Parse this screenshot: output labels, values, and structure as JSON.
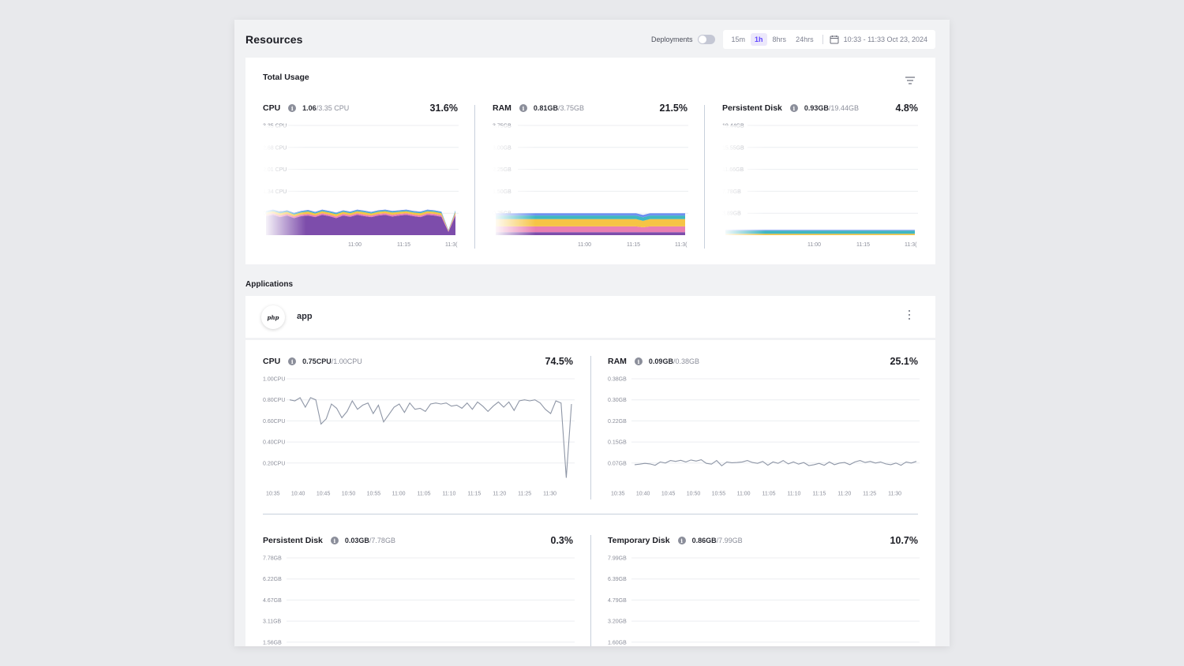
{
  "header": {
    "title": "Resources",
    "deployments_label": "Deployments",
    "range_options": [
      "15m",
      "1h",
      "8hrs",
      "24hrs"
    ],
    "active_range": "1h",
    "date_range": "10:33 - 11:33 Oct 23, 2024"
  },
  "total_usage": {
    "title": "Total Usage",
    "metrics": [
      {
        "name": "CPU",
        "used": "1.06",
        "slash": " / ",
        "total": "3.35 CPU",
        "percent": "31.6%"
      },
      {
        "name": "RAM",
        "used": "0.81GB",
        "slash": " / ",
        "total": "3.75GB",
        "percent": "21.5%"
      },
      {
        "name": "Persistent Disk",
        "used": "0.93GB",
        "slash": " / ",
        "total": "19.44GB",
        "percent": "4.8%"
      }
    ]
  },
  "applications": {
    "section_label": "Applications",
    "app": {
      "logo_text": "php",
      "name": "app",
      "metrics": [
        {
          "name": "CPU",
          "used": "0.75CPU",
          "slash": " / ",
          "total": "1.00CPU",
          "percent": "74.5%"
        },
        {
          "name": "RAM",
          "used": "0.09GB",
          "slash": " / ",
          "total": "0.38GB",
          "percent": "25.1%"
        },
        {
          "name": "Persistent Disk",
          "used": "0.03GB",
          "slash": " / ",
          "total": "7.78GB",
          "percent": "0.3%"
        },
        {
          "name": "Temporary Disk",
          "used": "0.86GB",
          "slash": " / ",
          "total": "7.99GB",
          "percent": "10.7%"
        }
      ]
    }
  },
  "colors": {
    "accent": "#6046ff",
    "purple": "#7d4dab",
    "pink": "#e97fb3",
    "yellow": "#f6c445",
    "teal": "#3fb7c1",
    "blue": "#6d8ff0",
    "line": "#8e96a6"
  },
  "chart_data": [
    {
      "id": "total-cpu",
      "type": "area",
      "stacked": true,
      "yticks": [
        "3.35 CPU",
        "2.68 CPU",
        "2.01 CPU",
        "1.34 CPU",
        "0.67 CPU"
      ],
      "ylim": [
        0,
        3.35
      ],
      "xticks": [
        "11:00",
        "11:15",
        "11:3("
      ],
      "series": [
        {
          "color": "#7d4dab",
          "values": [
            0.58,
            0.62,
            0.55,
            0.6,
            0.52,
            0.58,
            0.6,
            0.55,
            0.62,
            0.58,
            0.52,
            0.6,
            0.56,
            0.62,
            0.58,
            0.55,
            0.6,
            0.62,
            0.57,
            0.6,
            0.62,
            0.58,
            0.55,
            0.62,
            0.6,
            0.56,
            0.1,
            0.6
          ]
        },
        {
          "color": "#e97fb3",
          "values": [
            0.05,
            0.05,
            0.05,
            0.05,
            0.05,
            0.05,
            0.05,
            0.05,
            0.05,
            0.05,
            0.05,
            0.05,
            0.05,
            0.05,
            0.05,
            0.05,
            0.05,
            0.05,
            0.05,
            0.05,
            0.05,
            0.05,
            0.05,
            0.05,
            0.05,
            0.05,
            0.02,
            0.05
          ]
        },
        {
          "color": "#f6c445",
          "values": [
            0.06,
            0.06,
            0.07,
            0.06,
            0.06,
            0.06,
            0.07,
            0.06,
            0.06,
            0.06,
            0.07,
            0.06,
            0.06,
            0.06,
            0.07,
            0.06,
            0.06,
            0.06,
            0.07,
            0.06,
            0.06,
            0.06,
            0.07,
            0.06,
            0.06,
            0.06,
            0.02,
            0.06
          ]
        },
        {
          "color": "#3fb7c1",
          "values": [
            0.03,
            0.03,
            0.03,
            0.03,
            0.03,
            0.03,
            0.03,
            0.03,
            0.03,
            0.03,
            0.03,
            0.03,
            0.03,
            0.03,
            0.03,
            0.03,
            0.03,
            0.03,
            0.03,
            0.03,
            0.03,
            0.03,
            0.03,
            0.03,
            0.03,
            0.03,
            0.01,
            0.03
          ]
        },
        {
          "color": "#6d8ff0",
          "values": [
            0.02,
            0.02,
            0.02,
            0.02,
            0.02,
            0.02,
            0.02,
            0.02,
            0.02,
            0.02,
            0.02,
            0.02,
            0.02,
            0.02,
            0.02,
            0.02,
            0.02,
            0.02,
            0.02,
            0.02,
            0.02,
            0.02,
            0.02,
            0.02,
            0.02,
            0.02,
            0.01,
            0.02
          ]
        }
      ]
    },
    {
      "id": "total-ram",
      "type": "area",
      "stacked": true,
      "yticks": [
        "3.75GB",
        "3.00GB",
        "2.25GB",
        "1.50GB",
        "0.75GB"
      ],
      "ylim": [
        0,
        3.75
      ],
      "xticks": [
        "11:00",
        "11:15",
        "11:3("
      ],
      "series": [
        {
          "color": "#7d4dab",
          "values": [
            0.1,
            0.1,
            0.1,
            0.1,
            0.1,
            0.1,
            0.1,
            0.1,
            0.1,
            0.1,
            0.1,
            0.1,
            0.1,
            0.1,
            0.1,
            0.1,
            0.1,
            0.1,
            0.1,
            0.1,
            0.1,
            0.1,
            0.1,
            0.1,
            0.1,
            0.1,
            0.1,
            0.1
          ]
        },
        {
          "color": "#e97fb3",
          "values": [
            0.2,
            0.2,
            0.2,
            0.2,
            0.2,
            0.2,
            0.2,
            0.2,
            0.2,
            0.2,
            0.2,
            0.2,
            0.2,
            0.2,
            0.2,
            0.2,
            0.2,
            0.2,
            0.2,
            0.2,
            0.2,
            0.17,
            0.2,
            0.2,
            0.2,
            0.2,
            0.2,
            0.2
          ]
        },
        {
          "color": "#f6c445",
          "values": [
            0.25,
            0.25,
            0.25,
            0.25,
            0.25,
            0.25,
            0.25,
            0.25,
            0.25,
            0.25,
            0.25,
            0.25,
            0.25,
            0.25,
            0.25,
            0.25,
            0.25,
            0.25,
            0.25,
            0.25,
            0.25,
            0.22,
            0.25,
            0.25,
            0.25,
            0.25,
            0.25,
            0.25
          ]
        },
        {
          "color": "#3fb7c1",
          "values": [
            0.12,
            0.12,
            0.12,
            0.12,
            0.12,
            0.12,
            0.12,
            0.12,
            0.12,
            0.12,
            0.12,
            0.12,
            0.12,
            0.12,
            0.12,
            0.12,
            0.12,
            0.12,
            0.12,
            0.12,
            0.12,
            0.12,
            0.12,
            0.12,
            0.12,
            0.12,
            0.12,
            0.12
          ]
        },
        {
          "color": "#6d8ff0",
          "values": [
            0.08,
            0.08,
            0.08,
            0.08,
            0.08,
            0.08,
            0.08,
            0.08,
            0.08,
            0.08,
            0.08,
            0.08,
            0.08,
            0.08,
            0.08,
            0.08,
            0.08,
            0.08,
            0.08,
            0.08,
            0.08,
            0.08,
            0.08,
            0.08,
            0.08,
            0.08,
            0.08,
            0.08
          ]
        }
      ]
    },
    {
      "id": "total-disk",
      "type": "area",
      "stacked": true,
      "yticks": [
        "19.44GB",
        "15.55GB",
        "11.66GB",
        "7.78GB",
        "3.89GB"
      ],
      "ylim": [
        0,
        19.44
      ],
      "xticks": [
        "11:00",
        "11:15",
        "11:3("
      ],
      "series": [
        {
          "color": "#f6c445",
          "values": [
            0.25,
            0.25,
            0.25,
            0.25,
            0.25,
            0.25,
            0.25,
            0.25,
            0.25,
            0.25,
            0.25,
            0.25,
            0.25,
            0.25,
            0.25,
            0.25,
            0.25,
            0.25,
            0.25,
            0.25,
            0.25,
            0.25,
            0.25,
            0.25,
            0.25,
            0.25,
            0.25,
            0.25
          ]
        },
        {
          "color": "#3fb7c1",
          "values": [
            0.55,
            0.55,
            0.55,
            0.55,
            0.55,
            0.55,
            0.55,
            0.55,
            0.55,
            0.55,
            0.55,
            0.55,
            0.55,
            0.55,
            0.55,
            0.55,
            0.55,
            0.55,
            0.55,
            0.55,
            0.55,
            0.55,
            0.55,
            0.55,
            0.55,
            0.55,
            0.55,
            0.55
          ]
        },
        {
          "color": "#6d8ff0",
          "values": [
            0.13,
            0.13,
            0.13,
            0.13,
            0.13,
            0.13,
            0.13,
            0.13,
            0.13,
            0.13,
            0.13,
            0.13,
            0.13,
            0.13,
            0.13,
            0.13,
            0.13,
            0.13,
            0.13,
            0.13,
            0.13,
            0.13,
            0.13,
            0.13,
            0.13,
            0.13,
            0.13,
            0.13
          ]
        }
      ]
    },
    {
      "id": "app-cpu",
      "type": "line",
      "yticks": [
        "1.00CPU",
        "0.80CPU",
        "0.60CPU",
        "0.40CPU",
        "0.20CPU"
      ],
      "ylim": [
        0,
        1.0
      ],
      "xticks": [
        "10:35",
        "10:40",
        "10:45",
        "10:50",
        "10:55",
        "11:00",
        "11:05",
        "11:10",
        "11:15",
        "11:20",
        "11:25",
        "11:30"
      ],
      "series": [
        {
          "color": "#8e96a6",
          "values": [
            0.8,
            0.79,
            0.82,
            0.73,
            0.82,
            0.8,
            0.57,
            0.62,
            0.76,
            0.72,
            0.63,
            0.69,
            0.79,
            0.71,
            0.75,
            0.77,
            0.67,
            0.75,
            0.59,
            0.66,
            0.73,
            0.76,
            0.68,
            0.77,
            0.71,
            0.72,
            0.69,
            0.76,
            0.77,
            0.76,
            0.77,
            0.74,
            0.75,
            0.72,
            0.77,
            0.71,
            0.78,
            0.74,
            0.69,
            0.74,
            0.78,
            0.73,
            0.78,
            0.7,
            0.79,
            0.8,
            0.79,
            0.8,
            0.77,
            0.71,
            0.67,
            0.79,
            0.77,
            0.06,
            0.76
          ]
        }
      ]
    },
    {
      "id": "app-ram",
      "type": "line",
      "yticks": [
        "0.38GB",
        "0.30GB",
        "0.22GB",
        "0.15GB",
        "0.07GB"
      ],
      "ylim": [
        0,
        0.38
      ],
      "xticks": [
        "10:35",
        "10:40",
        "10:45",
        "10:50",
        "10:55",
        "11:00",
        "11:05",
        "11:10",
        "11:15",
        "11:20",
        "11:25",
        "11:30"
      ],
      "series": [
        {
          "color": "#8e96a6",
          "values": [
            0.07,
            0.072,
            0.075,
            0.073,
            0.068,
            0.08,
            0.076,
            0.085,
            0.082,
            0.086,
            0.08,
            0.087,
            0.083,
            0.088,
            0.075,
            0.072,
            0.085,
            0.066,
            0.08,
            0.077,
            0.078,
            0.08,
            0.085,
            0.078,
            0.075,
            0.082,
            0.068,
            0.08,
            0.075,
            0.085,
            0.073,
            0.08,
            0.072,
            0.078,
            0.067,
            0.07,
            0.075,
            0.068,
            0.08,
            0.07,
            0.076,
            0.078,
            0.07,
            0.08,
            0.085,
            0.078,
            0.082,
            0.076,
            0.08,
            0.073,
            0.07,
            0.076,
            0.068,
            0.08,
            0.076,
            0.082
          ]
        }
      ]
    },
    {
      "id": "app-pdisk",
      "type": "line",
      "yticks": [
        "7.78GB",
        "6.22GB",
        "4.67GB",
        "3.11GB",
        "1.56GB"
      ],
      "ylim": [
        0,
        7.78
      ],
      "xticks": [],
      "series": []
    },
    {
      "id": "app-tdisk",
      "type": "line",
      "yticks": [
        "7.99GB",
        "6.39GB",
        "4.79GB",
        "3.20GB",
        "1.60GB"
      ],
      "ylim": [
        0,
        7.99
      ],
      "xticks": [],
      "series": []
    }
  ]
}
